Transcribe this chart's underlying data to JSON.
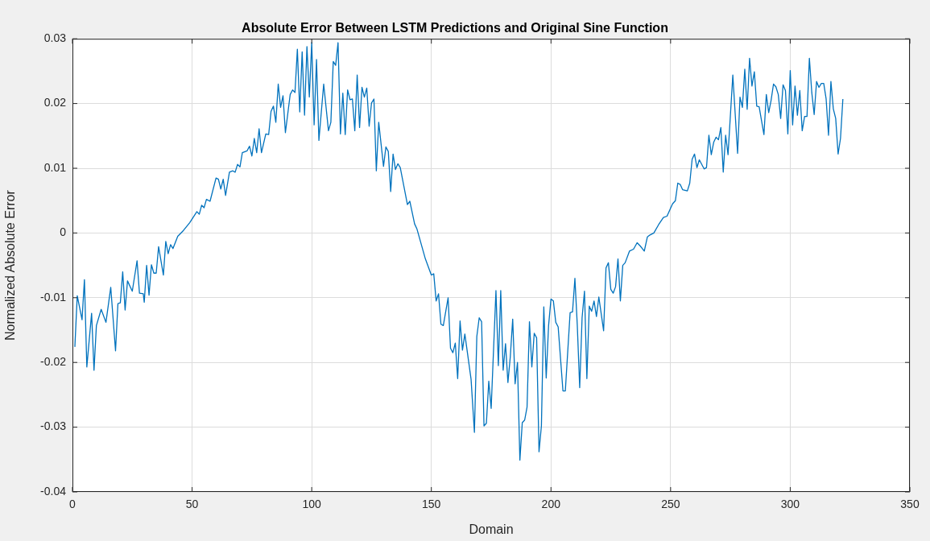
{
  "chart_data": {
    "type": "line",
    "title": "Absolute Error Between LSTM Predictions and Original Sine Function",
    "xlabel": "Domain",
    "ylabel": "Normalized Absolute Error",
    "xlim": [
      0,
      350
    ],
    "ylim": [
      -0.04,
      0.03
    ],
    "xticks": [
      0,
      50,
      100,
      150,
      200,
      250,
      300,
      350
    ],
    "yticks": [
      -0.04,
      -0.03,
      -0.02,
      -0.01,
      0,
      0.01,
      0.02,
      0.03
    ],
    "grid": true,
    "legend": false,
    "marker": "none",
    "line_style": "solid",
    "series": [
      {
        "color": "#0072bd",
        "x": [
          1,
          2,
          4,
          5,
          6,
          8,
          9,
          10,
          12,
          14,
          16,
          18,
          19,
          20,
          21,
          22,
          23,
          25,
          27,
          28,
          29.6,
          30,
          31,
          32,
          33,
          34,
          35,
          36,
          38,
          39,
          40,
          41,
          42,
          44,
          46.4,
          49,
          52,
          53,
          54,
          55,
          56,
          57.5,
          60,
          61,
          62,
          63,
          64,
          65.6,
          67,
          68,
          69,
          70,
          71,
          73,
          74,
          75,
          76,
          77,
          78,
          79,
          80.8,
          82,
          83,
          84,
          85,
          86,
          87,
          88,
          89,
          91,
          92,
          93,
          94,
          95,
          96,
          97,
          98,
          99,
          100,
          101,
          102,
          103,
          105,
          107,
          108,
          109,
          110,
          111,
          112,
          113,
          114,
          115,
          116,
          117,
          118,
          119,
          120,
          121,
          122,
          123,
          124,
          125,
          126,
          127,
          128,
          130,
          131,
          132,
          133,
          134,
          135,
          136,
          137,
          140,
          141,
          143,
          144,
          147.5,
          150,
          151,
          152,
          153,
          154,
          155,
          157,
          158,
          159,
          160,
          161,
          162,
          163,
          164,
          166.6,
          168,
          169,
          170,
          171,
          172,
          173,
          174,
          175,
          177,
          178,
          179,
          180,
          181,
          182,
          183,
          184,
          185,
          186,
          187,
          188,
          189,
          190,
          191,
          192,
          193,
          194,
          195,
          196,
          197,
          198,
          199,
          200,
          201,
          202,
          203,
          205,
          206,
          208,
          209,
          210,
          211,
          212,
          213,
          214,
          215,
          216,
          217,
          218,
          219,
          220,
          222,
          223,
          224,
          225,
          226,
          227,
          228,
          229,
          230,
          231,
          232.8,
          234.5,
          236,
          237.3,
          239,
          240.3,
          241.4,
          243,
          245,
          247,
          248.5,
          250.8,
          252,
          253,
          254,
          255,
          257,
          258,
          259,
          260,
          261,
          262,
          264,
          265,
          266,
          267,
          268,
          269,
          270,
          271,
          272,
          273,
          274,
          276,
          278,
          279,
          280,
          281,
          282,
          283,
          284,
          285,
          286,
          287,
          289,
          290,
          291,
          292,
          293,
          294,
          295,
          296,
          297,
          298,
          299,
          300,
          301,
          302,
          303,
          304,
          305,
          306,
          307,
          308,
          309,
          310,
          311,
          312,
          313,
          314,
          315,
          316,
          317,
          318,
          319,
          320,
          321,
          322
        ],
        "values": [
          -0.0176,
          -0.0097,
          -0.0134,
          -0.0072,
          -0.0207,
          -0.0124,
          -0.0212,
          -0.0143,
          -0.0118,
          -0.0138,
          -0.0084,
          -0.0182,
          -0.0109,
          -0.0108,
          -0.006,
          -0.0119,
          -0.0074,
          -0.009,
          -0.0043,
          -0.0093,
          -0.0094,
          -0.0107,
          -0.005,
          -0.0096,
          -0.0049,
          -0.0062,
          -0.0062,
          -0.0021,
          -0.0065,
          -0.0013,
          -0.0032,
          -0.0018,
          -0.0024,
          -0.0005,
          0.0004,
          0.0016,
          0.0033,
          0.0029,
          0.0043,
          0.0039,
          0.0052,
          0.0049,
          0.0085,
          0.0083,
          0.0068,
          0.0083,
          0.0058,
          0.0094,
          0.0096,
          0.0094,
          0.0106,
          0.0102,
          0.0124,
          0.0127,
          0.0134,
          0.0119,
          0.0146,
          0.0124,
          0.0161,
          0.0124,
          0.0153,
          0.0152,
          0.0188,
          0.0196,
          0.0171,
          0.023,
          0.0194,
          0.0212,
          0.0155,
          0.0214,
          0.0221,
          0.0217,
          0.0284,
          0.0187,
          0.028,
          0.0182,
          0.0288,
          0.021,
          0.0294,
          0.0167,
          0.0268,
          0.0143,
          0.023,
          0.0158,
          0.0171,
          0.0265,
          0.0259,
          0.0294,
          0.0153,
          0.0216,
          0.0152,
          0.0221,
          0.0206,
          0.0207,
          0.0158,
          0.0244,
          0.0163,
          0.0225,
          0.021,
          0.0224,
          0.0165,
          0.0201,
          0.0207,
          0.0096,
          0.0171,
          0.0103,
          0.0133,
          0.0126,
          0.0064,
          0.0122,
          0.0098,
          0.0107,
          0.0101,
          0.0044,
          0.0049,
          0.0014,
          0.0006,
          -0.004,
          -0.0065,
          -0.0063,
          -0.0105,
          -0.0094,
          -0.0141,
          -0.0143,
          -0.01,
          -0.0178,
          -0.0185,
          -0.017,
          -0.0225,
          -0.0136,
          -0.0181,
          -0.0156,
          -0.0226,
          -0.0308,
          -0.016,
          -0.0131,
          -0.0137,
          -0.0298,
          -0.0294,
          -0.0229,
          -0.0271,
          -0.0089,
          -0.0205,
          -0.0089,
          -0.0212,
          -0.0171,
          -0.0231,
          -0.0191,
          -0.0133,
          -0.0233,
          -0.02,
          -0.0351,
          -0.0293,
          -0.0289,
          -0.0269,
          -0.0137,
          -0.0207,
          -0.0155,
          -0.0162,
          -0.0338,
          -0.0298,
          -0.0114,
          -0.0224,
          -0.0143,
          -0.0102,
          -0.0105,
          -0.0138,
          -0.0145,
          -0.0244,
          -0.0244,
          -0.0123,
          -0.0122,
          -0.007,
          -0.0143,
          -0.0239,
          -0.0131,
          -0.009,
          -0.0225,
          -0.0113,
          -0.0121,
          -0.0105,
          -0.0129,
          -0.0099,
          -0.0151,
          -0.0054,
          -0.0046,
          -0.0087,
          -0.0093,
          -0.0083,
          -0.004,
          -0.0105,
          -0.005,
          -0.0046,
          -0.0028,
          -0.0025,
          -0.0015,
          -0.002,
          -0.0028,
          -0.0006,
          -0.0003,
          0,
          0.0013,
          0.0024,
          0.0026,
          0.0045,
          0.005,
          0.0077,
          0.0075,
          0.0067,
          0.0065,
          0.0077,
          0.0114,
          0.0122,
          0.0101,
          0.0113,
          0.0099,
          0.0101,
          0.0151,
          0.0121,
          0.014,
          0.0148,
          0.0144,
          0.0163,
          0.0094,
          0.0151,
          0.0121,
          0.0244,
          0.0123,
          0.021,
          0.0194,
          0.0253,
          0.0191,
          0.027,
          0.0227,
          0.0249,
          0.0196,
          0.0195,
          0.0152,
          0.0214,
          0.0186,
          0.0205,
          0.023,
          0.0226,
          0.0214,
          0.0177,
          0.0229,
          0.022,
          0.0153,
          0.0251,
          0.0167,
          0.0227,
          0.0182,
          0.022,
          0.0158,
          0.018,
          0.018,
          0.027,
          0.0217,
          0.0183,
          0.0234,
          0.0225,
          0.0231,
          0.0231,
          0.0207,
          0.0151,
          0.0234,
          0.0192,
          0.0177,
          0.0122,
          0.0146,
          0.0207
        ]
      }
    ]
  }
}
